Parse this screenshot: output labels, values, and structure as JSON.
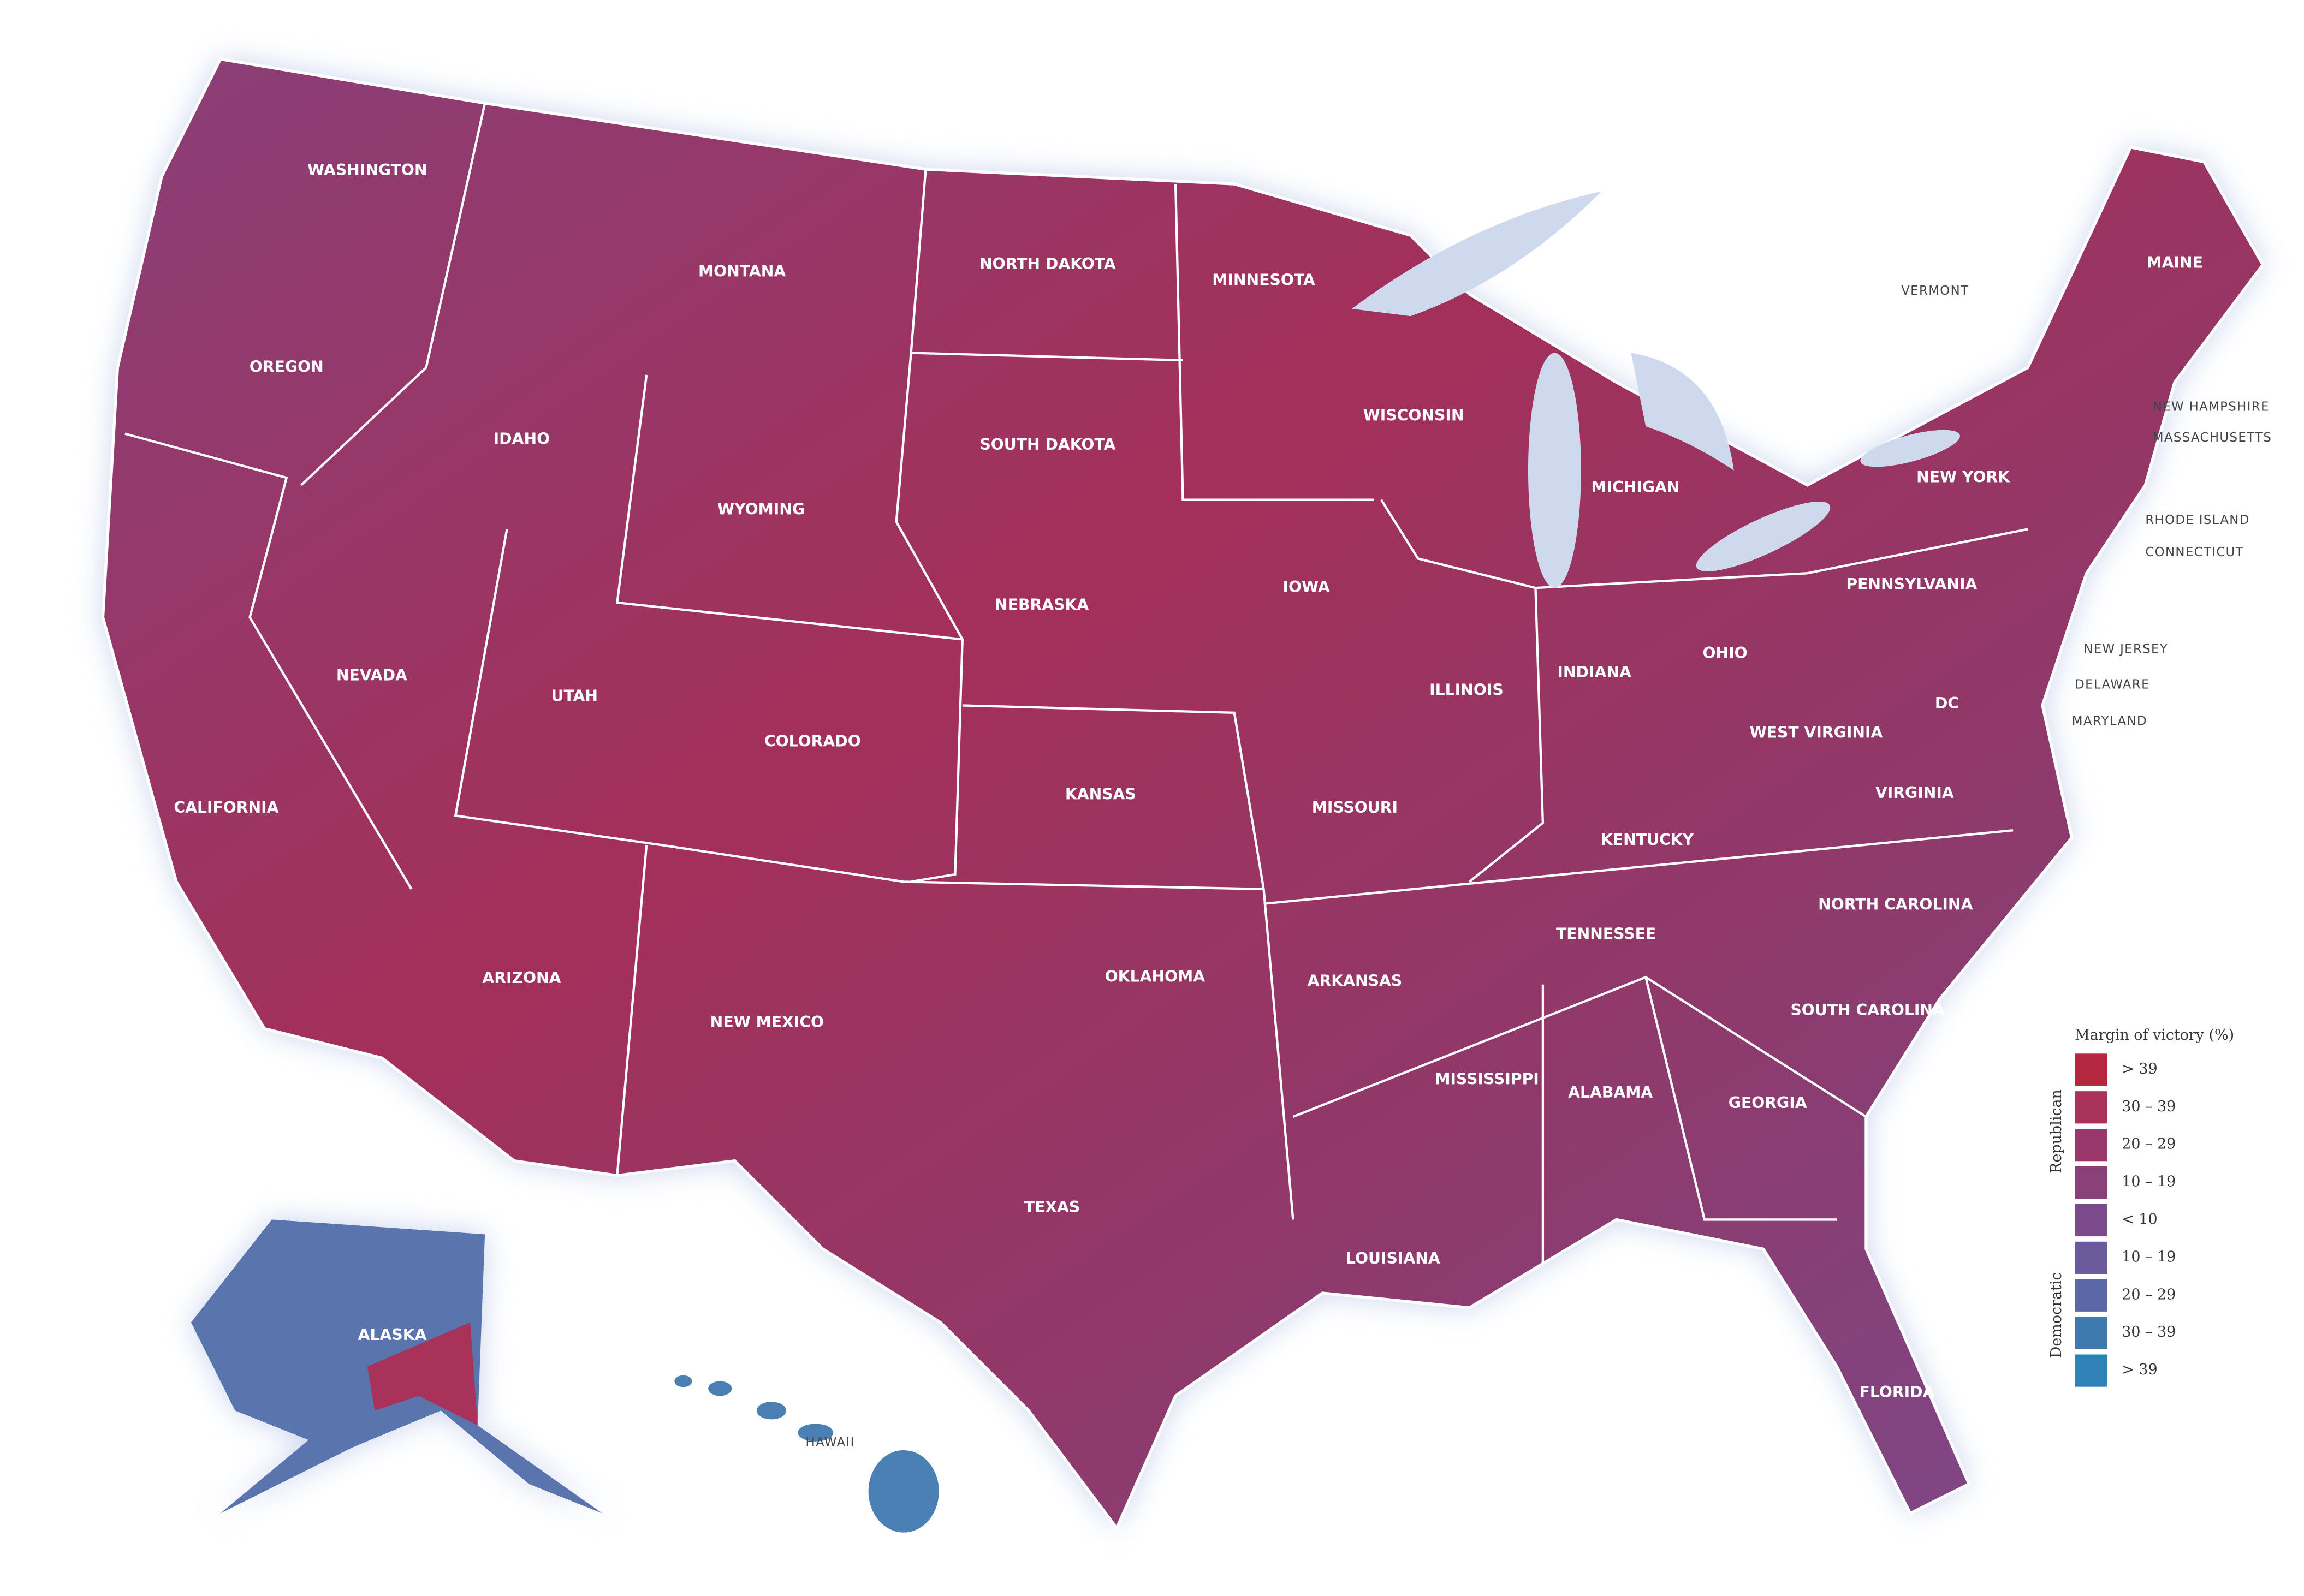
{
  "places": [
    "WASHINGTON",
    "MONTANA",
    "NORTH DAKOTA",
    "MINNESOTA",
    "OREGON",
    "IDAHO",
    "SOUTH DAKOTA",
    "WYOMING",
    "WISCONSIN",
    "MICHIGAN",
    "NEW YORK",
    "MAINE",
    "VERMONT",
    "NEW HAMPSHIRE",
    "MASSACHUSETTS",
    "RHODE ISLAND",
    "CONNECTICUT",
    "NEW JERSEY",
    "DELAWARE",
    "MARYLAND",
    "DC",
    "NEBRASKA",
    "IOWA",
    "NEVADA",
    "UTAH",
    "COLORADO",
    "ILLINOIS",
    "INDIANA",
    "OHIO",
    "PENNSYLVANIA",
    "WEST VIRGINIA",
    "KANSAS",
    "MISSOURI",
    "KENTUCKY",
    "VIRGINIA",
    "CALIFORNIA",
    "TENNESSEE",
    "NORTH CAROLINA",
    "OKLAHOMA",
    "ARKANSAS",
    "ARIZONA",
    "NEW MEXICO",
    "SOUTH CAROLINA",
    "MISSISSIPPI",
    "ALABAMA",
    "GEORGIA",
    "TEXAS",
    "LOUISIANA",
    "FLORIDA",
    "ALASKA",
    "HAWAII"
  ],
  "legend": {
    "title": "Margin of victory (%)",
    "groups": [
      "Republican",
      "Democratic"
    ],
    "items": [
      {
        "label": "> 39",
        "color": "#b5263f"
      },
      {
        "label": "30 – 39",
        "color": "#a8325a"
      },
      {
        "label": "20 – 29",
        "color": "#98386a"
      },
      {
        "label": "10 – 19",
        "color": "#8a4078"
      },
      {
        "label": "< 10",
        "color": "#7a4a8a"
      },
      {
        "label": "10 – 19",
        "color": "#6a5a9c"
      },
      {
        "label": "20 – 29",
        "color": "#5a68a8"
      },
      {
        "label": "30 – 39",
        "color": "#3f7aaf"
      },
      {
        "label": "> 39",
        "color": "#2f82b5"
      }
    ]
  }
}
